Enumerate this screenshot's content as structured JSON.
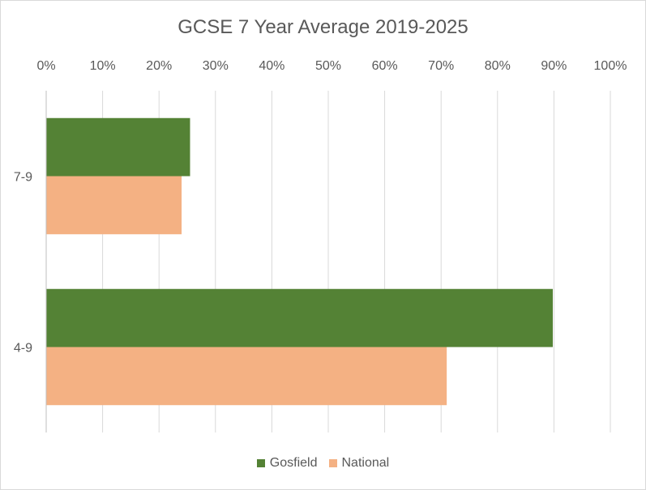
{
  "chart_data": {
    "type": "bar",
    "orientation": "horizontal",
    "title": "GCSE 7 Year Average 2019-2025",
    "categories": [
      "7-9",
      "4-9"
    ],
    "series": [
      {
        "name": "Gosfield",
        "values": [
          25.5,
          89.8
        ],
        "color": "#548235"
      },
      {
        "name": "National",
        "values": [
          24.0,
          71.0
        ],
        "color": "#F4B183"
      }
    ],
    "xlim": [
      0,
      100
    ],
    "x_ticks": [
      "0%",
      "10%",
      "20%",
      "30%",
      "40%",
      "50%",
      "60%",
      "70%",
      "80%",
      "90%",
      "100%"
    ],
    "x_axis_position": "top",
    "grid": true,
    "legend": "bottom"
  }
}
